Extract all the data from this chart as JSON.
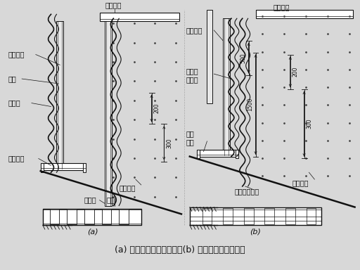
{
  "bg_color": "#d8d8d8",
  "white": "#ffffff",
  "black": "#111111",
  "title": "(a) 单层石膏板隔墙构造；(b) 双层石膏板隔墙构造",
  "sub_a": "(a)",
  "sub_b": "(b)",
  "dim_200": "200",
  "dim_300": "300",
  "dim_500": "500",
  "dim_1500": "1500",
  "label_zhuding_a": "沿顶龙骨",
  "label_zhuding_b": "沿顶龙骨",
  "label_zhu_a": "竖向龙骨",
  "label_zhu_b": "竖向龙骨",
  "label_luo": "镙眼",
  "label_ban_a": "石膏板",
  "label_di_a": "沿地龙骨",
  "label_luo_a": "自攻螺钉",
  "label_feng": "板缝",
  "label_ban2": "石膏板",
  "label_di_b": "沿地\n龙骨",
  "label_layer1": "第一层\n石膏板",
  "label_layer2": "第二层石膏板",
  "label_luo_b": "自攻螺钉"
}
